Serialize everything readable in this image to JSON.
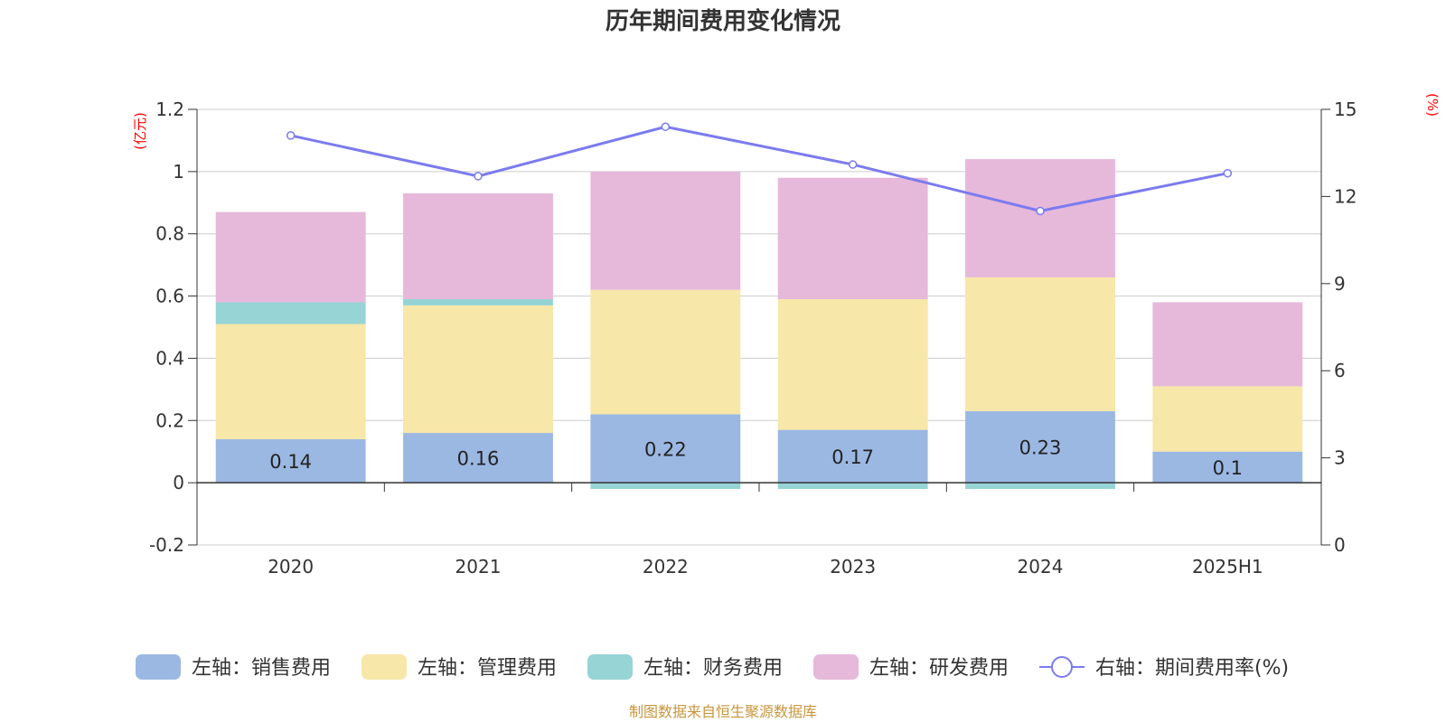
{
  "chart_data": {
    "type": "bar",
    "title": "历年期间费用变化情况",
    "categories": [
      "2020",
      "2021",
      "2022",
      "2023",
      "2024",
      "2025H1"
    ],
    "stacked": true,
    "left_axis": {
      "unit_label": "(亿元)",
      "ylim": [
        -0.2,
        1.2
      ],
      "ticks": [
        -0.2,
        0,
        0.2,
        0.4,
        0.6,
        0.8,
        1,
        1.2
      ],
      "tick_labels": [
        "-0.2",
        "0",
        "0.2",
        "0.4",
        "0.6",
        "0.8",
        "1",
        "1.2"
      ]
    },
    "right_axis": {
      "unit_label": "(%)",
      "ylim": [
        0,
        15
      ],
      "ticks": [
        0,
        3,
        6,
        9,
        12,
        15
      ],
      "tick_labels": [
        "0",
        "3",
        "6",
        "9",
        "12",
        "15"
      ]
    },
    "series": [
      {
        "name": "左轴：销售费用",
        "type": "bar",
        "axis": "left",
        "color": "#9bb8e2",
        "values": [
          0.14,
          0.16,
          0.22,
          0.17,
          0.23,
          0.1
        ],
        "labels": [
          "0.14",
          "0.16",
          "0.22",
          "0.17",
          "0.23",
          "0.1"
        ]
      },
      {
        "name": "左轴：管理费用",
        "type": "bar",
        "axis": "left",
        "color": "#f7e7a8",
        "values": [
          0.37,
          0.41,
          0.4,
          0.42,
          0.43,
          0.21
        ]
      },
      {
        "name": "左轴：财务费用",
        "type": "bar",
        "axis": "left",
        "color": "#96d4d5",
        "values": [
          0.07,
          0.02,
          -0.02,
          -0.02,
          -0.02,
          0.0
        ]
      },
      {
        "name": "左轴：研发费用",
        "type": "bar",
        "axis": "left",
        "color": "#e6b8da",
        "values": [
          0.29,
          0.34,
          0.38,
          0.39,
          0.38,
          0.27
        ]
      },
      {
        "name": "右轴：期间费用率(%)",
        "type": "line",
        "axis": "right",
        "color": "#7b7bef",
        "values": [
          14.1,
          12.7,
          14.4,
          13.1,
          11.5,
          12.8
        ]
      }
    ],
    "grid": true,
    "legend_position": "bottom",
    "source": "制图数据来自恒生聚源数据库"
  }
}
